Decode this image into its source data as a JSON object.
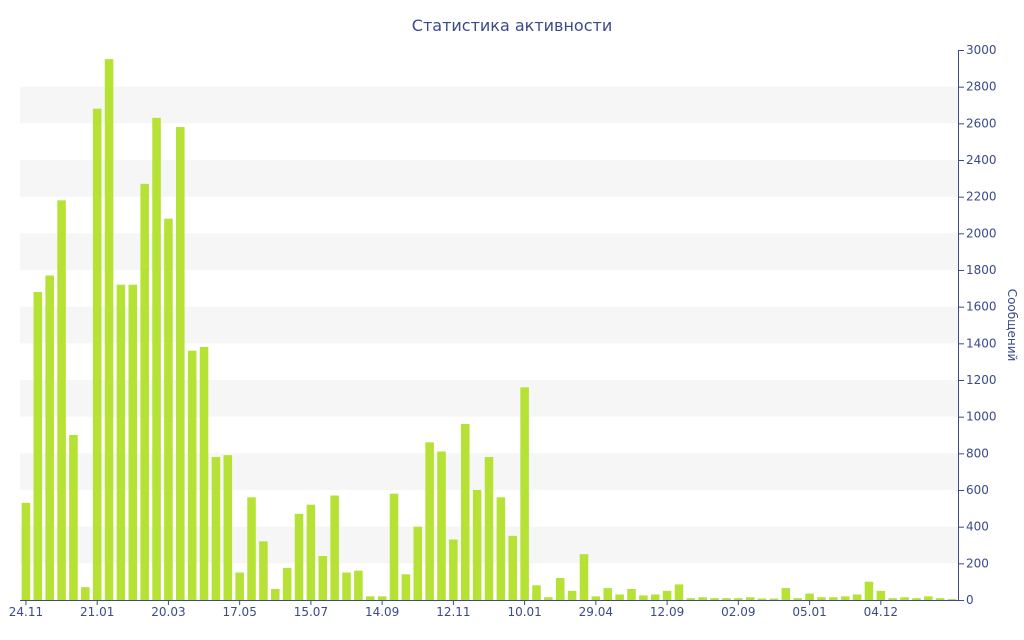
{
  "chart_data": {
    "type": "bar",
    "title": "Статистика активности",
    "xlabel": "",
    "ylabel": "Сообщений",
    "y_axis_side": "right",
    "ylim": [
      0,
      3000
    ],
    "y_ticks": [
      0,
      200,
      400,
      600,
      800,
      1000,
      1200,
      1400,
      1600,
      1800,
      2000,
      2200,
      2400,
      2600,
      2800,
      3000
    ],
    "x_tick_labels": [
      {
        "label": "24.11",
        "index": 0
      },
      {
        "label": "21.01",
        "index": 6
      },
      {
        "label": "20.03",
        "index": 12
      },
      {
        "label": "17.05",
        "index": 18
      },
      {
        "label": "15.07",
        "index": 24
      },
      {
        "label": "14.09",
        "index": 30
      },
      {
        "label": "12.11",
        "index": 36
      },
      {
        "label": "10.01",
        "index": 42
      },
      {
        "label": "29.04",
        "index": 48
      },
      {
        "label": "12.09",
        "index": 54
      },
      {
        "label": "02.09",
        "index": 60
      },
      {
        "label": "05.01",
        "index": 66
      },
      {
        "label": "04.12",
        "index": 72
      }
    ],
    "grid": true,
    "bar_color": "#b5e234",
    "grid_band_color": "#f6f6f6",
    "text_color": "#3a4a8a",
    "series": [
      {
        "values": [
          530,
          1680,
          1770,
          2180,
          900,
          70,
          2680,
          2950,
          1720,
          1720,
          2270,
          2630,
          2080,
          2580,
          1360,
          1380,
          780,
          790,
          150,
          560,
          320,
          60,
          175,
          470,
          520,
          240,
          570,
          150,
          160,
          20,
          20,
          580,
          140,
          400,
          860,
          810,
          330,
          960,
          600,
          780,
          560,
          350,
          1160,
          80,
          15,
          120,
          50,
          250,
          20,
          65,
          30,
          60,
          25,
          30,
          50,
          85,
          10,
          15,
          10,
          10,
          10,
          15,
          8,
          8,
          65,
          10,
          35,
          15,
          15,
          20,
          30,
          100,
          50,
          10,
          15,
          10,
          20,
          10,
          5
        ]
      }
    ]
  }
}
